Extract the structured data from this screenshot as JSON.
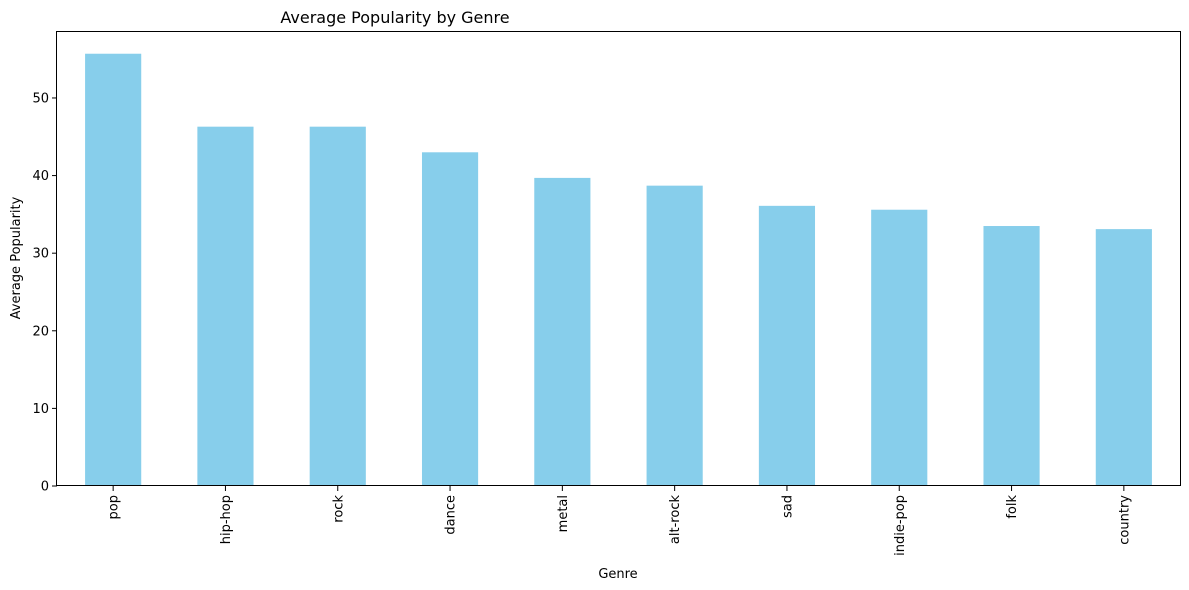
{
  "chart_data": {
    "type": "bar",
    "title": "Average Popularity by Genre",
    "xlabel": "Genre",
    "ylabel": "Average Popularity",
    "categories": [
      "pop",
      "hip-hop",
      "rock",
      "dance",
      "metal",
      "alt-rock",
      "sad",
      "indie-pop",
      "folk",
      "country"
    ],
    "values": [
      55.7,
      46.3,
      46.3,
      43.0,
      39.7,
      38.7,
      36.1,
      35.6,
      33.5,
      33.1
    ],
    "ylim": [
      0,
      58.5
    ],
    "yticks": [
      0,
      10,
      20,
      30,
      40,
      50
    ],
    "bar_color": "#87ceeb",
    "grid": false,
    "legend": "none"
  }
}
